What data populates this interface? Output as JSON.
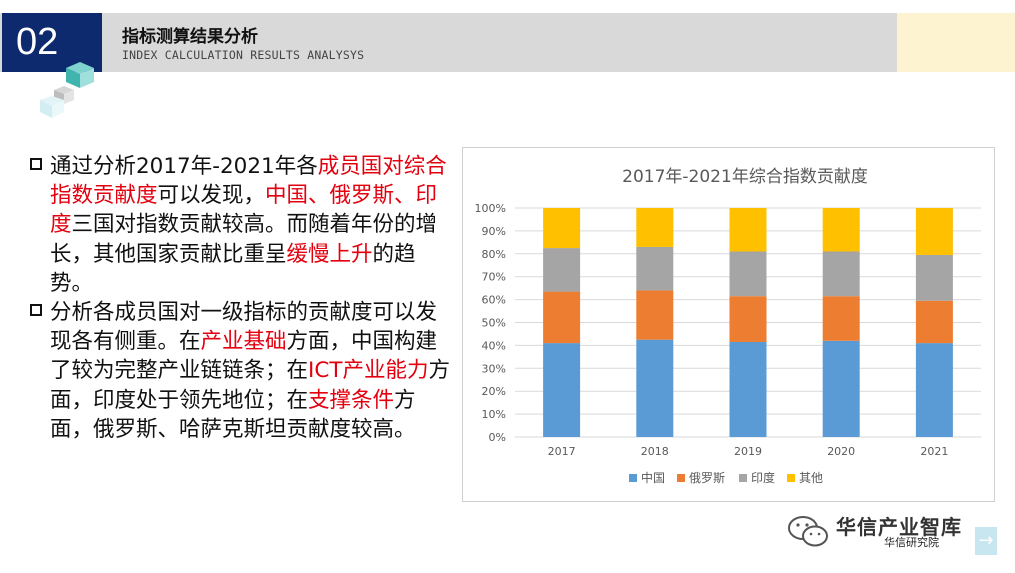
{
  "header": {
    "section_number": "02",
    "title_cn": "指标测算结果分析",
    "title_en": "INDEX CALCULATION RESULTS ANALYSYS"
  },
  "body_text": {
    "para1": [
      {
        "text": "通过分析2017年-2021年各",
        "red": false
      },
      {
        "text": "成员国对综合指数贡献度",
        "red": true
      },
      {
        "text": "可以发现，",
        "red": false
      },
      {
        "text": "中国、俄罗斯、印度",
        "red": true
      },
      {
        "text": "三国对指数贡献较高。而随着年份的增长，其他国家贡献比重呈",
        "red": false
      },
      {
        "text": "缓慢上升",
        "red": true
      },
      {
        "text": "的趋势。",
        "red": false
      }
    ],
    "para2": [
      {
        "text": "分析各成员国对一级指标的贡献度可以发现各有侧重。在",
        "red": false
      },
      {
        "text": "产业基础",
        "red": true
      },
      {
        "text": "方面，中国构建了较为完整产业链链条；在",
        "red": false
      },
      {
        "text": "ICT产业能力",
        "red": true
      },
      {
        "text": "方面，印度处于领先地位；在",
        "red": false
      },
      {
        "text": "支撑条件",
        "red": true
      },
      {
        "text": "方面，俄罗斯、哈萨克斯坦贡献度较高。",
        "red": false
      }
    ]
  },
  "chart_data": {
    "type": "bar",
    "stacked": true,
    "title": "2017年-2021年综合指数贡献度",
    "categories": [
      "2017",
      "2018",
      "2019",
      "2020",
      "2021"
    ],
    "ylim": [
      0,
      100
    ],
    "yticks": [
      "0%",
      "10%",
      "20%",
      "30%",
      "40%",
      "50%",
      "60%",
      "70%",
      "80%",
      "90%",
      "100%"
    ],
    "grid": true,
    "legend_position": "bottom",
    "series": [
      {
        "name": "中国",
        "color": "#5b9bd5",
        "values": [
          41,
          42.5,
          41.5,
          42,
          41
        ]
      },
      {
        "name": "俄罗斯",
        "color": "#ed7d31",
        "values": [
          22.5,
          21.5,
          20,
          19.5,
          18.5
        ]
      },
      {
        "name": "印度",
        "color": "#a5a5a5",
        "values": [
          19,
          19,
          19.5,
          19.5,
          20
        ]
      },
      {
        "name": "其他",
        "color": "#ffc000",
        "values": [
          17.5,
          17,
          19,
          19,
          20.5
        ]
      }
    ]
  },
  "watermark": {
    "brand": "华信产业智库",
    "sub": "华信研究院"
  },
  "nav": {
    "next_glyph": "→"
  }
}
